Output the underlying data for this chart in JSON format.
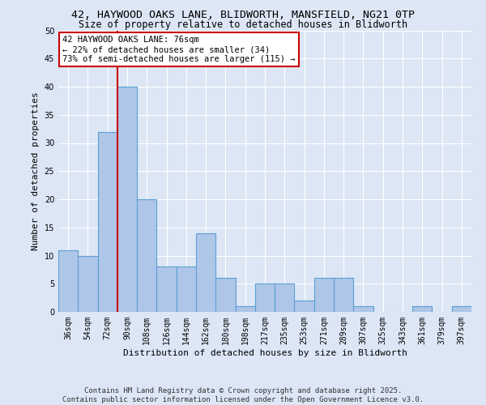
{
  "title_line1": "42, HAYWOOD OAKS LANE, BLIDWORTH, MANSFIELD, NG21 0TP",
  "title_line2": "Size of property relative to detached houses in Blidworth",
  "xlabel": "Distribution of detached houses by size in Blidworth",
  "ylabel": "Number of detached properties",
  "categories": [
    "36sqm",
    "54sqm",
    "72sqm",
    "90sqm",
    "108sqm",
    "126sqm",
    "144sqm",
    "162sqm",
    "180sqm",
    "198sqm",
    "217sqm",
    "235sqm",
    "253sqm",
    "271sqm",
    "289sqm",
    "307sqm",
    "325sqm",
    "343sqm",
    "361sqm",
    "379sqm",
    "397sqm"
  ],
  "values": [
    11,
    10,
    32,
    40,
    20,
    8,
    8,
    14,
    6,
    1,
    5,
    5,
    2,
    6,
    6,
    1,
    0,
    0,
    1,
    0,
    1
  ],
  "bar_color": "#aec6e8",
  "bar_edgecolor": "#5a9fd4",
  "bar_linewidth": 0.8,
  "red_line_index": 2,
  "annotation_text": "42 HAYWOOD OAKS LANE: 76sqm\n← 22% of detached houses are smaller (34)\n73% of semi-detached houses are larger (115) →",
  "annotation_box_color": "#ffffff",
  "annotation_box_edgecolor": "#cc0000",
  "red_line_color": "#cc0000",
  "ylim": [
    0,
    50
  ],
  "yticks": [
    0,
    5,
    10,
    15,
    20,
    25,
    30,
    35,
    40,
    45,
    50
  ],
  "background_color": "#dce6f5",
  "plot_background": "#dce6f5",
  "grid_color": "#ffffff",
  "footer_line1": "Contains HM Land Registry data © Crown copyright and database right 2025.",
  "footer_line2": "Contains public sector information licensed under the Open Government Licence v3.0.",
  "title_fontsize": 9.5,
  "subtitle_fontsize": 8.5,
  "axis_label_fontsize": 8,
  "tick_fontsize": 7,
  "footer_fontsize": 6.5,
  "annotation_fontsize": 7.5
}
